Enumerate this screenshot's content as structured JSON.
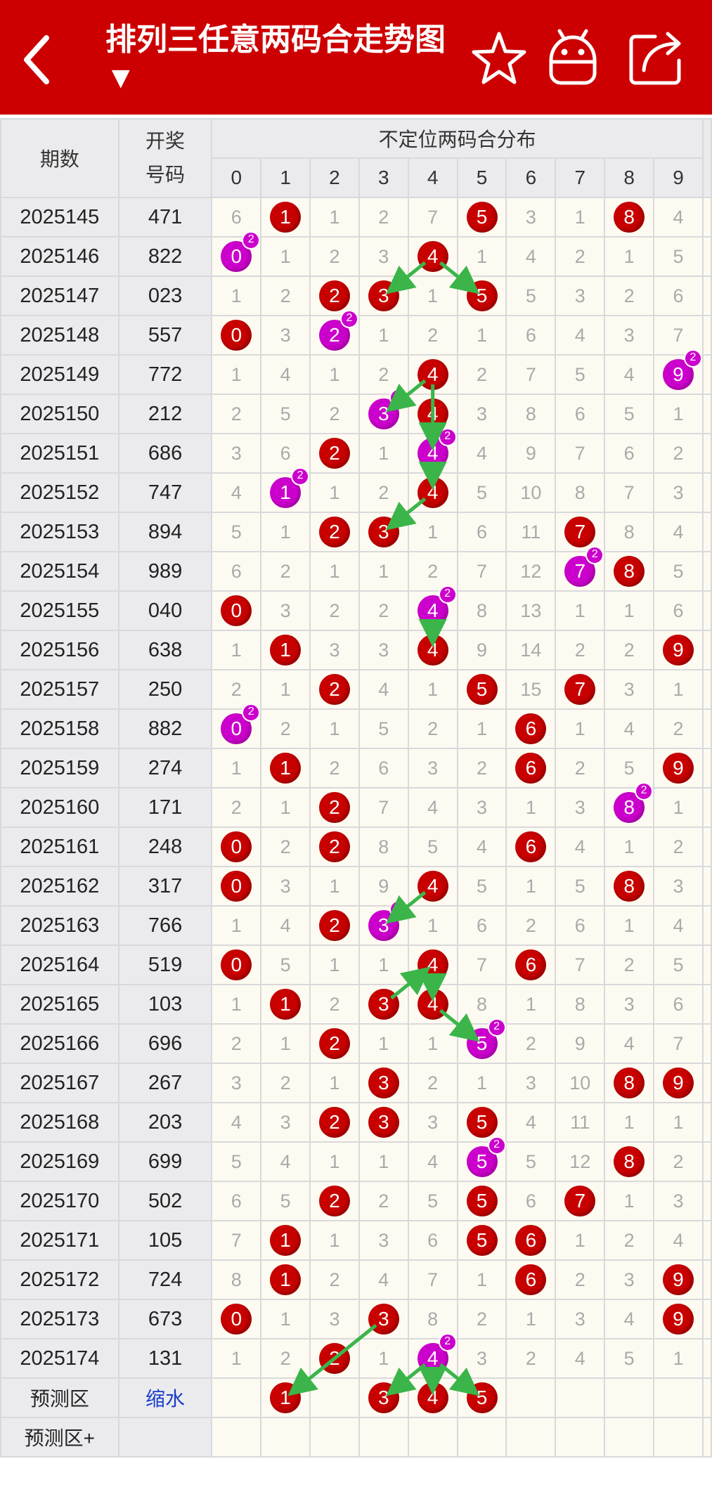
{
  "header": {
    "title": "排列三任意两码合走势图",
    "dropdown_glyph": "▼",
    "icons": [
      "back-icon",
      "star-icon",
      "android-icon",
      "share-icon"
    ],
    "colors": {
      "header_bg": "#cc0000",
      "hit": "#c80000",
      "repeat": "#cc00cc",
      "arrow": "#3bb54a"
    }
  },
  "table": {
    "col_issue": "期数",
    "col_code": "开奖号码",
    "col_dist": "不定位两码合分布",
    "digits": [
      "0",
      "1",
      "2",
      "3",
      "4",
      "5",
      "6",
      "7",
      "8",
      "9"
    ],
    "rows": [
      {
        "issue": "2025145",
        "code": "471",
        "cells": [
          "6",
          "1",
          "1",
          "2",
          "7",
          "5",
          "3",
          "1",
          "8",
          "4"
        ],
        "hits": [
          1,
          5,
          8
        ],
        "rep": {}
      },
      {
        "issue": "2025146",
        "code": "822",
        "cells": [
          "0",
          "1",
          "2",
          "3",
          "4",
          "1",
          "4",
          "2",
          "1",
          "5"
        ],
        "hits": [
          0,
          4
        ],
        "rep": {
          "0": "2"
        }
      },
      {
        "issue": "2025147",
        "code": "023",
        "cells": [
          "1",
          "2",
          "2",
          "3",
          "1",
          "5",
          "5",
          "3",
          "2",
          "6"
        ],
        "hits": [
          2,
          3,
          5
        ],
        "rep": {}
      },
      {
        "issue": "2025148",
        "code": "557",
        "cells": [
          "0",
          "3",
          "2",
          "1",
          "2",
          "1",
          "6",
          "4",
          "3",
          "7"
        ],
        "hits": [
          0,
          2
        ],
        "rep": {
          "2": "2"
        }
      },
      {
        "issue": "2025149",
        "code": "772",
        "cells": [
          "1",
          "4",
          "1",
          "2",
          "4",
          "2",
          "7",
          "5",
          "4",
          "9"
        ],
        "hits": [
          4,
          9
        ],
        "rep": {
          "9": "2"
        }
      },
      {
        "issue": "2025150",
        "code": "212",
        "cells": [
          "2",
          "5",
          "2",
          "3",
          "4",
          "3",
          "8",
          "6",
          "5",
          "1"
        ],
        "hits": [
          3,
          4
        ],
        "rep": {
          "3": "2"
        }
      },
      {
        "issue": "2025151",
        "code": "686",
        "cells": [
          "3",
          "6",
          "2",
          "1",
          "4",
          "4",
          "9",
          "7",
          "6",
          "2"
        ],
        "hits": [
          2,
          4
        ],
        "rep": {
          "4": "2"
        }
      },
      {
        "issue": "2025152",
        "code": "747",
        "cells": [
          "4",
          "1",
          "1",
          "2",
          "4",
          "5",
          "10",
          "8",
          "7",
          "3"
        ],
        "hits": [
          1,
          4
        ],
        "rep": {
          "1": "2"
        }
      },
      {
        "issue": "2025153",
        "code": "894",
        "cells": [
          "5",
          "1",
          "2",
          "3",
          "1",
          "6",
          "11",
          "7",
          "8",
          "4"
        ],
        "hits": [
          2,
          3,
          7
        ],
        "rep": {}
      },
      {
        "issue": "2025154",
        "code": "989",
        "cells": [
          "6",
          "2",
          "1",
          "1",
          "2",
          "7",
          "12",
          "7",
          "8",
          "5"
        ],
        "hits": [
          7,
          8
        ],
        "rep": {
          "7": "2"
        }
      },
      {
        "issue": "2025155",
        "code": "040",
        "cells": [
          "0",
          "3",
          "2",
          "2",
          "4",
          "8",
          "13",
          "1",
          "1",
          "6"
        ],
        "hits": [
          0,
          4
        ],
        "rep": {
          "4": "2"
        }
      },
      {
        "issue": "2025156",
        "code": "638",
        "cells": [
          "1",
          "1",
          "3",
          "3",
          "4",
          "9",
          "14",
          "2",
          "2",
          "9"
        ],
        "hits": [
          1,
          4,
          9
        ],
        "rep": {}
      },
      {
        "issue": "2025157",
        "code": "250",
        "cells": [
          "2",
          "1",
          "2",
          "4",
          "1",
          "5",
          "15",
          "7",
          "3",
          "1"
        ],
        "hits": [
          2,
          5,
          7
        ],
        "rep": {}
      },
      {
        "issue": "2025158",
        "code": "882",
        "cells": [
          "0",
          "2",
          "1",
          "5",
          "2",
          "1",
          "6",
          "1",
          "4",
          "2"
        ],
        "hits": [
          0,
          6
        ],
        "rep": {
          "0": "2"
        }
      },
      {
        "issue": "2025159",
        "code": "274",
        "cells": [
          "1",
          "1",
          "2",
          "6",
          "3",
          "2",
          "6",
          "2",
          "5",
          "9"
        ],
        "hits": [
          1,
          6,
          9
        ],
        "rep": {}
      },
      {
        "issue": "2025160",
        "code": "171",
        "cells": [
          "2",
          "1",
          "2",
          "7",
          "4",
          "3",
          "1",
          "3",
          "8",
          "1"
        ],
        "hits": [
          2,
          8
        ],
        "rep": {
          "8": "2"
        }
      },
      {
        "issue": "2025161",
        "code": "248",
        "cells": [
          "0",
          "2",
          "2",
          "8",
          "5",
          "4",
          "6",
          "4",
          "1",
          "2"
        ],
        "hits": [
          0,
          2,
          6
        ],
        "rep": {}
      },
      {
        "issue": "2025162",
        "code": "317",
        "cells": [
          "0",
          "3",
          "1",
          "9",
          "4",
          "5",
          "1",
          "5",
          "8",
          "3"
        ],
        "hits": [
          0,
          4,
          8
        ],
        "rep": {}
      },
      {
        "issue": "2025163",
        "code": "766",
        "cells": [
          "1",
          "4",
          "2",
          "3",
          "1",
          "6",
          "2",
          "6",
          "1",
          "4"
        ],
        "hits": [
          2,
          3
        ],
        "rep": {
          "3": "2"
        }
      },
      {
        "issue": "2025164",
        "code": "519",
        "cells": [
          "0",
          "5",
          "1",
          "1",
          "4",
          "7",
          "6",
          "7",
          "2",
          "5"
        ],
        "hits": [
          0,
          4,
          6
        ],
        "rep": {}
      },
      {
        "issue": "2025165",
        "code": "103",
        "cells": [
          "1",
          "1",
          "2",
          "3",
          "4",
          "8",
          "1",
          "8",
          "3",
          "6"
        ],
        "hits": [
          1,
          3,
          4
        ],
        "rep": {}
      },
      {
        "issue": "2025166",
        "code": "696",
        "cells": [
          "2",
          "1",
          "2",
          "1",
          "1",
          "5",
          "2",
          "9",
          "4",
          "7"
        ],
        "hits": [
          2,
          5
        ],
        "rep": {
          "5": "2"
        }
      },
      {
        "issue": "2025167",
        "code": "267",
        "cells": [
          "3",
          "2",
          "1",
          "3",
          "2",
          "1",
          "3",
          "10",
          "8",
          "9"
        ],
        "hits": [
          3,
          8,
          9
        ],
        "rep": {}
      },
      {
        "issue": "2025168",
        "code": "203",
        "cells": [
          "4",
          "3",
          "2",
          "3",
          "3",
          "5",
          "4",
          "11",
          "1",
          "1"
        ],
        "hits": [
          2,
          3,
          5
        ],
        "rep": {}
      },
      {
        "issue": "2025169",
        "code": "699",
        "cells": [
          "5",
          "4",
          "1",
          "1",
          "4",
          "5",
          "5",
          "12",
          "8",
          "2"
        ],
        "hits": [
          5,
          8
        ],
        "rep": {
          "5": "2"
        }
      },
      {
        "issue": "2025170",
        "code": "502",
        "cells": [
          "6",
          "5",
          "2",
          "2",
          "5",
          "5",
          "6",
          "7",
          "1",
          "3"
        ],
        "hits": [
          2,
          5,
          7
        ],
        "rep": {}
      },
      {
        "issue": "2025171",
        "code": "105",
        "cells": [
          "7",
          "1",
          "1",
          "3",
          "6",
          "5",
          "6",
          "1",
          "2",
          "4"
        ],
        "hits": [
          1,
          5,
          6
        ],
        "rep": {}
      },
      {
        "issue": "2025172",
        "code": "724",
        "cells": [
          "8",
          "1",
          "2",
          "4",
          "7",
          "1",
          "6",
          "2",
          "3",
          "9"
        ],
        "hits": [
          1,
          6,
          9
        ],
        "rep": {}
      },
      {
        "issue": "2025173",
        "code": "673",
        "cells": [
          "0",
          "1",
          "3",
          "3",
          "8",
          "2",
          "1",
          "3",
          "4",
          "9"
        ],
        "hits": [
          0,
          3,
          9
        ],
        "rep": {}
      },
      {
        "issue": "2025174",
        "code": "131",
        "cells": [
          "1",
          "2",
          "2",
          "1",
          "4",
          "3",
          "2",
          "4",
          "5",
          "1"
        ],
        "hits": [
          2,
          4
        ],
        "rep": {
          "4": "2"
        }
      }
    ],
    "predict": {
      "label": "预测区",
      "link": "缩水",
      "balls": [
        "",
        "1",
        "",
        "3",
        "4",
        "5",
        "",
        "",
        "",
        ""
      ]
    },
    "predict_plus": {
      "label": "预测区+"
    }
  }
}
